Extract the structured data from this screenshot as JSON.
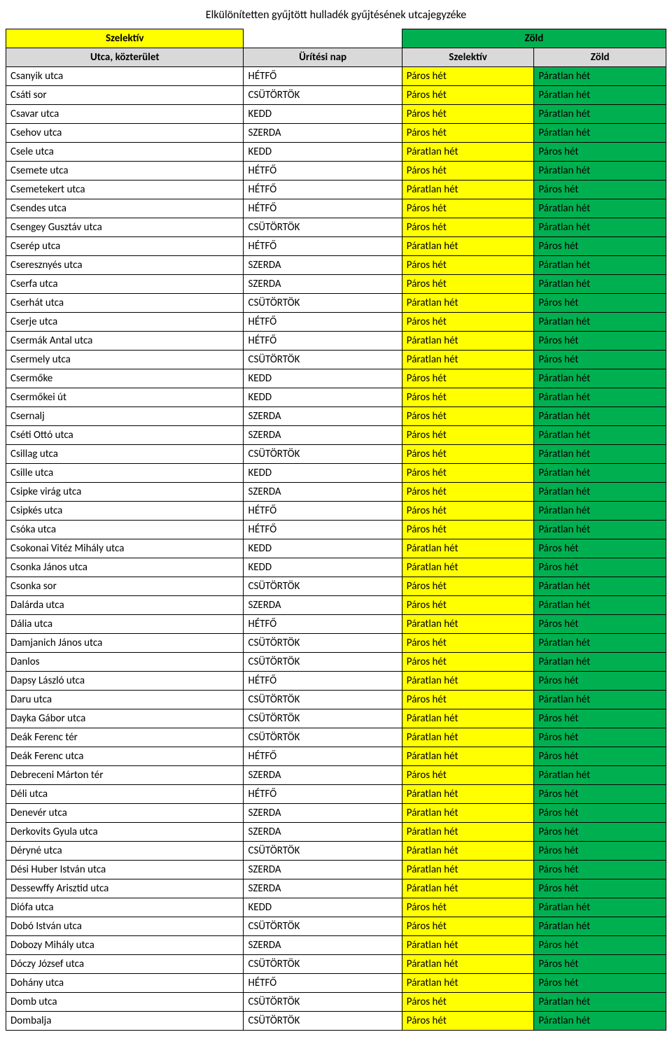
{
  "title": "Elkülönítetten gyűjtött hulladék gyűjtésének utcajegyzéke",
  "legend": {
    "szelektiv": "Szelektív",
    "zold": "Zöld"
  },
  "headers": {
    "utca": "Utca, közterület",
    "nap": "Ürítési nap",
    "szelektiv": "Szelektív",
    "zold": "Zöld"
  },
  "colors": {
    "yellow": "#ffff00",
    "green": "#00b050",
    "header_bg": "#d9d9d9"
  },
  "rows": [
    {
      "utca": "Csanyik utca",
      "nap": "HÉTFŐ",
      "szelektiv": "Páros hét",
      "zold": "Páratlan hét"
    },
    {
      "utca": "Csáti sor",
      "nap": "CSÜTÖRTÖK",
      "szelektiv": "Páros hét",
      "zold": "Páratlan hét"
    },
    {
      "utca": "Csavar utca",
      "nap": "KEDD",
      "szelektiv": "Páros hét",
      "zold": "Páratlan hét"
    },
    {
      "utca": "Csehov utca",
      "nap": "SZERDA",
      "szelektiv": "Páros hét",
      "zold": "Páratlan hét"
    },
    {
      "utca": "Csele utca",
      "nap": "KEDD",
      "szelektiv": "Páratlan hét",
      "zold": "Páros hét"
    },
    {
      "utca": "Csemete utca",
      "nap": "HÉTFŐ",
      "szelektiv": "Páros hét",
      "zold": "Páratlan hét"
    },
    {
      "utca": "Csemetekert utca",
      "nap": "HÉTFŐ",
      "szelektiv": "Páratlan hét",
      "zold": "Páros hét"
    },
    {
      "utca": "Csendes utca",
      "nap": "HÉTFŐ",
      "szelektiv": "Páros hét",
      "zold": "Páratlan hét"
    },
    {
      "utca": "Csengey Gusztáv utca",
      "nap": "CSÜTÖRTÖK",
      "szelektiv": "Páros hét",
      "zold": "Páratlan hét"
    },
    {
      "utca": "Cserép utca",
      "nap": "HÉTFŐ",
      "szelektiv": "Páratlan hét",
      "zold": "Páros hét"
    },
    {
      "utca": "Cseresznyés utca",
      "nap": "SZERDA",
      "szelektiv": "Páros hét",
      "zold": "Páratlan hét"
    },
    {
      "utca": "Cserfa utca",
      "nap": "SZERDA",
      "szelektiv": "Páros hét",
      "zold": "Páratlan hét"
    },
    {
      "utca": "Cserhát utca",
      "nap": "CSÜTÖRTÖK",
      "szelektiv": "Páratlan hét",
      "zold": "Páros hét"
    },
    {
      "utca": "Cserje utca",
      "nap": "HÉTFŐ",
      "szelektiv": "Páros hét",
      "zold": "Páratlan hét"
    },
    {
      "utca": "Csermák Antal utca",
      "nap": "HÉTFŐ",
      "szelektiv": "Páratlan hét",
      "zold": "Páros hét"
    },
    {
      "utca": "Csermely utca",
      "nap": "CSÜTÖRTÖK",
      "szelektiv": "Páratlan hét",
      "zold": "Páros hét"
    },
    {
      "utca": "Csermőke",
      "nap": "KEDD",
      "szelektiv": "Páros hét",
      "zold": "Páratlan hét"
    },
    {
      "utca": "Csermőkei út",
      "nap": "KEDD",
      "szelektiv": "Páros hét",
      "zold": "Páratlan hét"
    },
    {
      "utca": "Csernalj",
      "nap": "SZERDA",
      "szelektiv": "Páros hét",
      "zold": "Páratlan hét"
    },
    {
      "utca": "Cséti Ottó utca",
      "nap": "SZERDA",
      "szelektiv": "Páros hét",
      "zold": "Páratlan hét"
    },
    {
      "utca": "Csillag utca",
      "nap": "CSÜTÖRTÖK",
      "szelektiv": "Páros hét",
      "zold": "Páratlan hét"
    },
    {
      "utca": "Csille utca",
      "nap": "KEDD",
      "szelektiv": "Páros hét",
      "zold": "Páratlan hét"
    },
    {
      "utca": "Csipke virág utca",
      "nap": "SZERDA",
      "szelektiv": "Páros hét",
      "zold": "Páratlan hét"
    },
    {
      "utca": "Csipkés utca",
      "nap": "HÉTFŐ",
      "szelektiv": "Páros hét",
      "zold": "Páratlan hét"
    },
    {
      "utca": "Csóka utca",
      "nap": "HÉTFŐ",
      "szelektiv": "Páros hét",
      "zold": "Páratlan hét"
    },
    {
      "utca": "Csokonai Vitéz Mihály utca",
      "nap": "KEDD",
      "szelektiv": "Páratlan hét",
      "zold": "Páros hét"
    },
    {
      "utca": "Csonka János utca",
      "nap": "KEDD",
      "szelektiv": "Páratlan hét",
      "zold": "Páros hét"
    },
    {
      "utca": "Csonka sor",
      "nap": "CSÜTÖRTÖK",
      "szelektiv": "Páros hét",
      "zold": "Páratlan hét"
    },
    {
      "utca": "Dalárda utca",
      "nap": "SZERDA",
      "szelektiv": "Páros hét",
      "zold": "Páratlan hét"
    },
    {
      "utca": "Dália utca",
      "nap": "HÉTFŐ",
      "szelektiv": "Páratlan hét",
      "zold": "Páros hét"
    },
    {
      "utca": "Damjanich János utca",
      "nap": "CSÜTÖRTÖK",
      "szelektiv": "Páros hét",
      "zold": "Páratlan hét"
    },
    {
      "utca": "Danlos",
      "nap": "CSÜTÖRTÖK",
      "szelektiv": "Páros hét",
      "zold": "Páratlan hét"
    },
    {
      "utca": "Dapsy László utca",
      "nap": "HÉTFŐ",
      "szelektiv": "Páratlan hét",
      "zold": "Páros hét"
    },
    {
      "utca": "Daru utca",
      "nap": "CSÜTÖRTÖK",
      "szelektiv": "Páros hét",
      "zold": "Páratlan hét"
    },
    {
      "utca": "Dayka Gábor utca",
      "nap": "CSÜTÖRTÖK",
      "szelektiv": "Páratlan hét",
      "zold": "Páros hét"
    },
    {
      "utca": "Deák Ferenc tér",
      "nap": "CSÜTÖRTÖK",
      "szelektiv": "Páratlan hét",
      "zold": "Páros hét"
    },
    {
      "utca": "Deák Ferenc utca",
      "nap": "HÉTFŐ",
      "szelektiv": "Páratlan hét",
      "zold": "Páros hét"
    },
    {
      "utca": "Debreceni Márton tér",
      "nap": "SZERDA",
      "szelektiv": "Páros hét",
      "zold": "Páratlan hét"
    },
    {
      "utca": "Déli utca",
      "nap": "HÉTFŐ",
      "szelektiv": "Páratlan hét",
      "zold": "Páros hét"
    },
    {
      "utca": "Denevér utca",
      "nap": "SZERDA",
      "szelektiv": "Páratlan hét",
      "zold": "Páros hét"
    },
    {
      "utca": "Derkovits Gyula utca",
      "nap": "SZERDA",
      "szelektiv": "Páratlan hét",
      "zold": "Páros hét"
    },
    {
      "utca": "Déryné utca",
      "nap": "CSÜTÖRTÖK",
      "szelektiv": "Páratlan hét",
      "zold": "Páros hét"
    },
    {
      "utca": "Dési Huber István utca",
      "nap": "SZERDA",
      "szelektiv": "Páratlan hét",
      "zold": "Páros hét"
    },
    {
      "utca": "Dessewffy Arisztid utca",
      "nap": "SZERDA",
      "szelektiv": "Páratlan hét",
      "zold": "Páros hét"
    },
    {
      "utca": "Diófa utca",
      "nap": "KEDD",
      "szelektiv": "Páros hét",
      "zold": "Páratlan hét"
    },
    {
      "utca": "Dobó István utca",
      "nap": "CSÜTÖRTÖK",
      "szelektiv": "Páros hét",
      "zold": "Páratlan hét"
    },
    {
      "utca": "Dobozy Mihály utca",
      "nap": "SZERDA",
      "szelektiv": "Páratlan hét",
      "zold": "Páros hét"
    },
    {
      "utca": "Dóczy József utca",
      "nap": "CSÜTÖRTÖK",
      "szelektiv": "Páratlan hét",
      "zold": "Páros hét"
    },
    {
      "utca": "Dohány utca",
      "nap": "HÉTFŐ",
      "szelektiv": "Páratlan hét",
      "zold": "Páros hét"
    },
    {
      "utca": "Domb utca",
      "nap": "CSÜTÖRTÖK",
      "szelektiv": "Páros hét",
      "zold": "Páratlan hét"
    },
    {
      "utca": "Dombalja",
      "nap": "CSÜTÖRTÖK",
      "szelektiv": "Páros hét",
      "zold": "Páratlan hét"
    }
  ]
}
